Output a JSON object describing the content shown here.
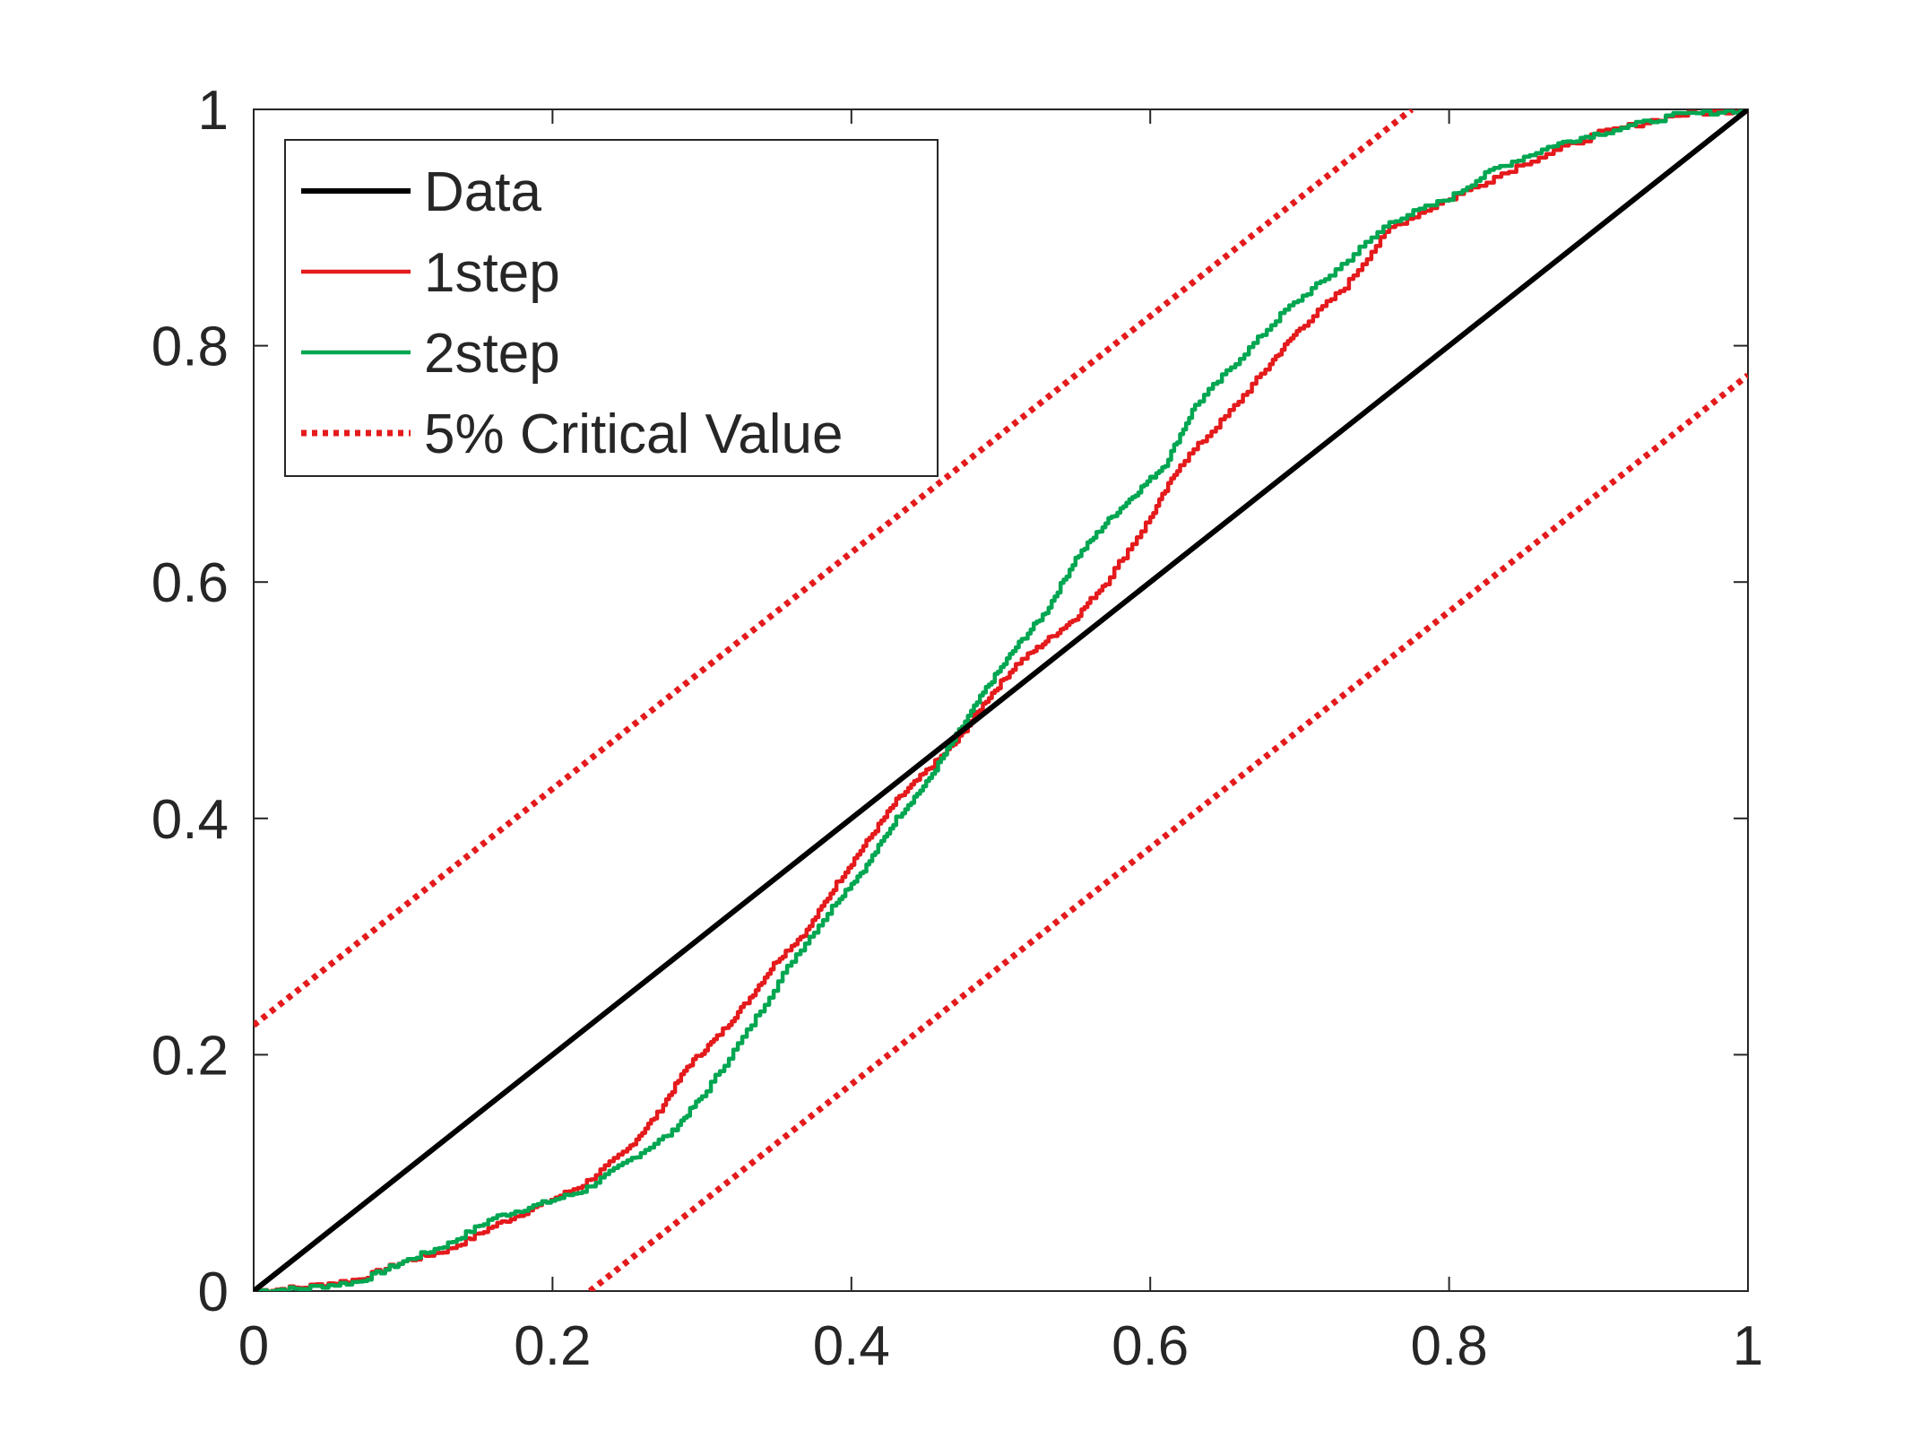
{
  "chart_data": {
    "type": "line",
    "title": "",
    "xlabel": "",
    "ylabel": "",
    "xlim": [
      0,
      1
    ],
    "ylim": [
      0,
      1
    ],
    "x_ticks": [
      "0",
      "0.2",
      "0.4",
      "0.6",
      "0.8",
      "1"
    ],
    "y_ticks": [
      "0",
      "0.2",
      "0.4",
      "0.6",
      "0.8",
      "1"
    ],
    "grid": false,
    "legend_position": "top-left",
    "series": [
      {
        "name": "Data",
        "color": "#000000",
        "style": "solid",
        "points": [
          [
            0,
            0
          ],
          [
            1,
            1
          ]
        ]
      },
      {
        "name": "1step",
        "color": "#e41a1c",
        "style": "solid",
        "points": [
          [
            0,
            0
          ],
          [
            0.03,
            0.003
          ],
          [
            0.07,
            0.01
          ],
          [
            0.1,
            0.025
          ],
          [
            0.13,
            0.035
          ],
          [
            0.16,
            0.055
          ],
          [
            0.19,
            0.072
          ],
          [
            0.22,
            0.09
          ],
          [
            0.25,
            0.12
          ],
          [
            0.27,
            0.15
          ],
          [
            0.29,
            0.19
          ],
          [
            0.31,
            0.215
          ],
          [
            0.33,
            0.245
          ],
          [
            0.35,
            0.28
          ],
          [
            0.37,
            0.305
          ],
          [
            0.39,
            0.345
          ],
          [
            0.41,
            0.38
          ],
          [
            0.43,
            0.415
          ],
          [
            0.45,
            0.44
          ],
          [
            0.47,
            0.465
          ],
          [
            0.49,
            0.5
          ],
          [
            0.51,
            0.53
          ],
          [
            0.53,
            0.55
          ],
          [
            0.55,
            0.57
          ],
          [
            0.57,
            0.6
          ],
          [
            0.6,
            0.655
          ],
          [
            0.62,
            0.7
          ],
          [
            0.65,
            0.74
          ],
          [
            0.68,
            0.785
          ],
          [
            0.7,
            0.815
          ],
          [
            0.73,
            0.85
          ],
          [
            0.76,
            0.9
          ],
          [
            0.8,
            0.925
          ],
          [
            0.85,
            0.955
          ],
          [
            0.9,
            0.98
          ],
          [
            0.95,
            0.995
          ],
          [
            1,
            1
          ]
        ]
      },
      {
        "name": "2step",
        "color": "#00a651",
        "style": "solid",
        "points": [
          [
            0,
            0
          ],
          [
            0.03,
            0.002
          ],
          [
            0.07,
            0.008
          ],
          [
            0.1,
            0.025
          ],
          [
            0.13,
            0.04
          ],
          [
            0.16,
            0.062
          ],
          [
            0.19,
            0.073
          ],
          [
            0.22,
            0.085
          ],
          [
            0.25,
            0.11
          ],
          [
            0.28,
            0.135
          ],
          [
            0.3,
            0.165
          ],
          [
            0.33,
            0.22
          ],
          [
            0.36,
            0.28
          ],
          [
            0.39,
            0.33
          ],
          [
            0.41,
            0.36
          ],
          [
            0.43,
            0.4
          ],
          [
            0.45,
            0.43
          ],
          [
            0.47,
            0.47
          ],
          [
            0.49,
            0.51
          ],
          [
            0.51,
            0.545
          ],
          [
            0.53,
            0.575
          ],
          [
            0.55,
            0.62
          ],
          [
            0.57,
            0.65
          ],
          [
            0.59,
            0.675
          ],
          [
            0.61,
            0.7
          ],
          [
            0.63,
            0.75
          ],
          [
            0.66,
            0.79
          ],
          [
            0.69,
            0.83
          ],
          [
            0.72,
            0.86
          ],
          [
            0.76,
            0.905
          ],
          [
            0.8,
            0.925
          ],
          [
            0.83,
            0.95
          ],
          [
            0.87,
            0.97
          ],
          [
            0.9,
            0.98
          ],
          [
            0.95,
            0.995
          ],
          [
            1,
            1
          ]
        ]
      },
      {
        "name": "5% Critical Value",
        "color": "#e41a1c",
        "style": "dotted",
        "segments": [
          [
            [
              0,
              0.225
            ],
            [
              0.775,
              1
            ]
          ],
          [
            [
              0.225,
              0
            ],
            [
              1,
              0.775
            ]
          ]
        ]
      }
    ]
  }
}
